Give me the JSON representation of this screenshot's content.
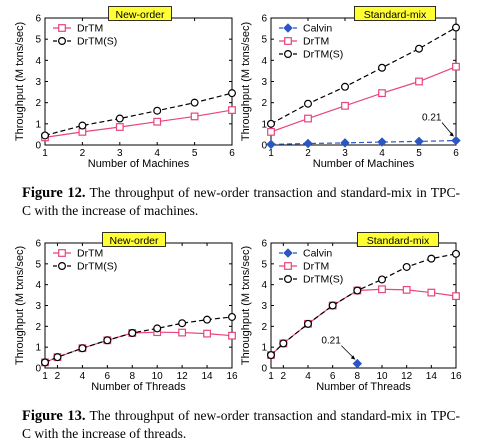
{
  "chart_data": [
    {
      "type": "line",
      "title": "New-order",
      "xlabel": "Number of Machines",
      "ylabel": "Throughput (M txns/sec)",
      "x": [
        1,
        2,
        3,
        4,
        5,
        6
      ],
      "xticks": [
        "1",
        "2",
        "3",
        "4",
        "5",
        "6"
      ],
      "xlim": [
        1,
        6
      ],
      "ylim": [
        0,
        6
      ],
      "yticks": [
        "0",
        "1",
        "2",
        "3",
        "4",
        "5",
        "6"
      ],
      "legend_position": "top-left",
      "series": [
        {
          "name": "DrTM",
          "marker": "square",
          "line": "solid",
          "color": "#e8457c",
          "values": [
            0.36,
            0.62,
            0.85,
            1.1,
            1.35,
            1.65
          ]
        },
        {
          "name": "DrTM(S)",
          "marker": "circle",
          "line": "dashed",
          "color": "#000000",
          "values": [
            0.45,
            0.92,
            1.25,
            1.62,
            2.0,
            2.45
          ]
        }
      ]
    },
    {
      "type": "line",
      "title": "Standard-mix",
      "xlabel": "Number of Machines",
      "ylabel": "Throughput (M txns/sec)",
      "x": [
        1,
        2,
        3,
        4,
        5,
        6
      ],
      "xticks": [
        "1",
        "2",
        "3",
        "4",
        "5",
        "6"
      ],
      "xlim": [
        1,
        6
      ],
      "ylim": [
        0,
        6
      ],
      "yticks": [
        "0",
        "1",
        "2",
        "3",
        "4",
        "5",
        "6"
      ],
      "legend_position": "top-left",
      "annotation": {
        "text": "0.21",
        "x": 6,
        "y": 0.21
      },
      "series": [
        {
          "name": "Calvin",
          "marker": "diamond",
          "line": "dashed",
          "color": "#2b56c4",
          "values": [
            0.03,
            0.07,
            0.1,
            0.14,
            0.17,
            0.21
          ]
        },
        {
          "name": "DrTM",
          "marker": "square",
          "line": "solid",
          "color": "#e8457c",
          "values": [
            0.62,
            1.25,
            1.85,
            2.45,
            3.0,
            3.7
          ]
        },
        {
          "name": "DrTM(S)",
          "marker": "circle",
          "line": "dashed",
          "color": "#000000",
          "values": [
            1.0,
            1.95,
            2.75,
            3.65,
            4.55,
            5.55
          ]
        }
      ]
    },
    {
      "type": "line",
      "title": "New-order",
      "xlabel": "Number of Threads",
      "ylabel": "Throughput (M txns/sec)",
      "x": [
        1,
        2,
        4,
        6,
        8,
        10,
        12,
        14,
        16
      ],
      "xticks": [
        "1",
        "2",
        "4",
        "6",
        "8",
        "10",
        "12",
        "14",
        "16"
      ],
      "xlim": [
        1,
        16
      ],
      "ylim": [
        0,
        6
      ],
      "yticks": [
        "0",
        "1",
        "2",
        "3",
        "4",
        "5",
        "6"
      ],
      "legend_position": "top-left",
      "series": [
        {
          "name": "DrTM",
          "marker": "square",
          "line": "solid",
          "color": "#e8457c",
          "values": [
            0.27,
            0.52,
            0.95,
            1.33,
            1.68,
            1.72,
            1.7,
            1.65,
            1.55
          ]
        },
        {
          "name": "DrTM(S)",
          "marker": "circle",
          "line": "dashed",
          "color": "#000000",
          "values": [
            0.27,
            0.52,
            0.95,
            1.33,
            1.68,
            1.9,
            2.15,
            2.32,
            2.45
          ]
        }
      ]
    },
    {
      "type": "line",
      "title": "Standard-mix",
      "xlabel": "Number of Threads",
      "ylabel": "Throughput (M txns/sec)",
      "x": [
        1,
        2,
        4,
        6,
        8,
        10,
        12,
        14,
        16
      ],
      "xticks": [
        "1",
        "2",
        "4",
        "6",
        "8",
        "10",
        "12",
        "14",
        "16"
      ],
      "xlim": [
        1,
        16
      ],
      "ylim": [
        0,
        6
      ],
      "yticks": [
        "0",
        "1",
        "2",
        "3",
        "4",
        "5",
        "6"
      ],
      "legend_position": "top-left",
      "annotation": {
        "text": "0.21",
        "x": 8,
        "y": 0.21
      },
      "series": [
        {
          "name": "Calvin",
          "marker": "diamond",
          "line": "dashed",
          "color": "#2b56c4",
          "x": [
            8
          ],
          "values": [
            0.21
          ]
        },
        {
          "name": "DrTM",
          "marker": "square",
          "line": "solid",
          "color": "#e8457c",
          "values": [
            0.62,
            1.18,
            2.12,
            3.0,
            3.72,
            3.78,
            3.75,
            3.62,
            3.45
          ]
        },
        {
          "name": "DrTM(S)",
          "marker": "circle",
          "line": "dashed",
          "color": "#000000",
          "values": [
            0.62,
            1.18,
            2.12,
            3.0,
            3.72,
            4.25,
            4.85,
            5.25,
            5.48
          ]
        }
      ]
    }
  ],
  "captions": {
    "fig12": {
      "label": "Figure 12.",
      "text": " The throughput of new-order transaction and standard-mix in TPC-C with the increase of machines."
    },
    "fig13": {
      "label": "Figure 13.",
      "text": " The throughput of new-order transaction and standard-mix in TPC-C with the increase of threads."
    }
  }
}
